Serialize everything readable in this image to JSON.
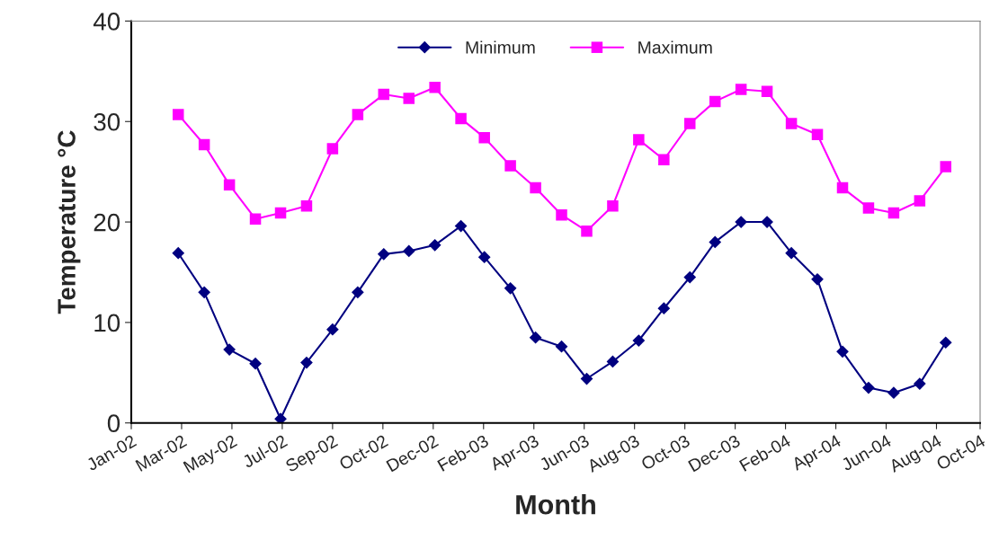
{
  "chart_data": {
    "type": "line",
    "xlabel": "Month",
    "ylabel": "Temperature °C",
    "x": [
      "2002-03-01",
      "2002-04-01",
      "2002-05-01",
      "2002-06-01",
      "2002-07-01",
      "2002-08-01",
      "2002-09-01",
      "2002-10-01",
      "2002-11-01",
      "2002-12-01",
      "2003-01-01",
      "2003-02-01",
      "2003-03-01",
      "2003-04-01",
      "2003-05-01",
      "2003-06-01",
      "2003-07-01",
      "2003-08-01",
      "2003-09-01",
      "2003-10-01",
      "2003-11-01",
      "2003-12-01",
      "2004-01-01",
      "2004-02-01",
      "2004-03-01",
      "2004-04-01",
      "2004-05-01",
      "2004-06-01",
      "2004-07-01",
      "2004-08-01",
      "2004-09-01"
    ],
    "series": [
      {
        "name": "Minimum",
        "color": "#000080",
        "marker": "diamond",
        "values": [
          16.9,
          13.0,
          7.3,
          5.9,
          0.4,
          6.0,
          9.3,
          13.0,
          16.8,
          17.1,
          17.7,
          19.6,
          16.5,
          13.4,
          8.5,
          7.6,
          4.4,
          6.1,
          8.2,
          11.4,
          14.5,
          18.0,
          20.0,
          20.0,
          16.9,
          14.3,
          7.1,
          3.5,
          3.0,
          3.9,
          8.0
        ]
      },
      {
        "name": "Maximum",
        "color": "#ff00ff",
        "marker": "square",
        "values": [
          30.7,
          27.7,
          23.7,
          20.3,
          20.9,
          21.6,
          27.3,
          30.7,
          32.7,
          32.3,
          33.4,
          30.3,
          28.4,
          25.6,
          23.4,
          20.7,
          19.1,
          21.6,
          28.2,
          26.2,
          29.8,
          32.0,
          33.2,
          33.0,
          29.8,
          28.7,
          23.4,
          21.4,
          20.9,
          22.1,
          25.5
        ]
      }
    ],
    "xlim": [
      "2002-01-04",
      "2004-10-12"
    ],
    "xticks": [
      {
        "value": "2002-01-04",
        "label": "Jan-02"
      },
      {
        "value": "2002-03-05",
        "label": "Mar-02"
      },
      {
        "value": "2002-05-04",
        "label": "May-02"
      },
      {
        "value": "2002-07-03",
        "label": "Jul-02"
      },
      {
        "value": "2002-09-01",
        "label": "Sep-02"
      },
      {
        "value": "2002-10-31",
        "label": "Oct-02"
      },
      {
        "value": "2002-12-30",
        "label": "Dec-02"
      },
      {
        "value": "2003-02-28",
        "label": "Feb-03"
      },
      {
        "value": "2003-04-29",
        "label": "Apr-03"
      },
      {
        "value": "2003-06-28",
        "label": "Jun-03"
      },
      {
        "value": "2003-08-27",
        "label": "Aug-03"
      },
      {
        "value": "2003-10-26",
        "label": "Oct-03"
      },
      {
        "value": "2003-12-25",
        "label": "Dec-03"
      },
      {
        "value": "2004-02-23",
        "label": "Feb-04"
      },
      {
        "value": "2004-04-23",
        "label": "Apr-04"
      },
      {
        "value": "2004-06-22",
        "label": "Jun-04"
      },
      {
        "value": "2004-08-21",
        "label": "Aug-04"
      },
      {
        "value": "2004-10-12",
        "label": "Oct-04"
      }
    ],
    "ylim": [
      0,
      40
    ],
    "yticks": [
      0,
      10,
      20,
      30,
      40
    ],
    "grid": false,
    "legend": "top",
    "line_style": "solid"
  }
}
